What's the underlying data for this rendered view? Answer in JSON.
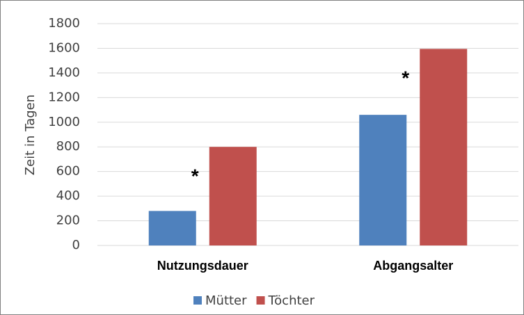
{
  "chart_data": {
    "type": "bar",
    "y_label": "Zeit in Tagen",
    "categories": [
      "Nutzungsdauer",
      "Abgangsalter"
    ],
    "series": [
      {
        "name": "Mütter",
        "color": "#4f81bd",
        "values": [
          280,
          1060
        ]
      },
      {
        "name": "Töchter",
        "color": "#c0504d",
        "values": [
          800,
          1595
        ]
      }
    ],
    "annotations": [
      "*",
      "*"
    ],
    "ylim": [
      0,
      1800
    ],
    "yticks": [
      0,
      200,
      400,
      600,
      800,
      1000,
      1200,
      1400,
      1600,
      1800
    ],
    "grid": true,
    "legend": "bottom"
  }
}
